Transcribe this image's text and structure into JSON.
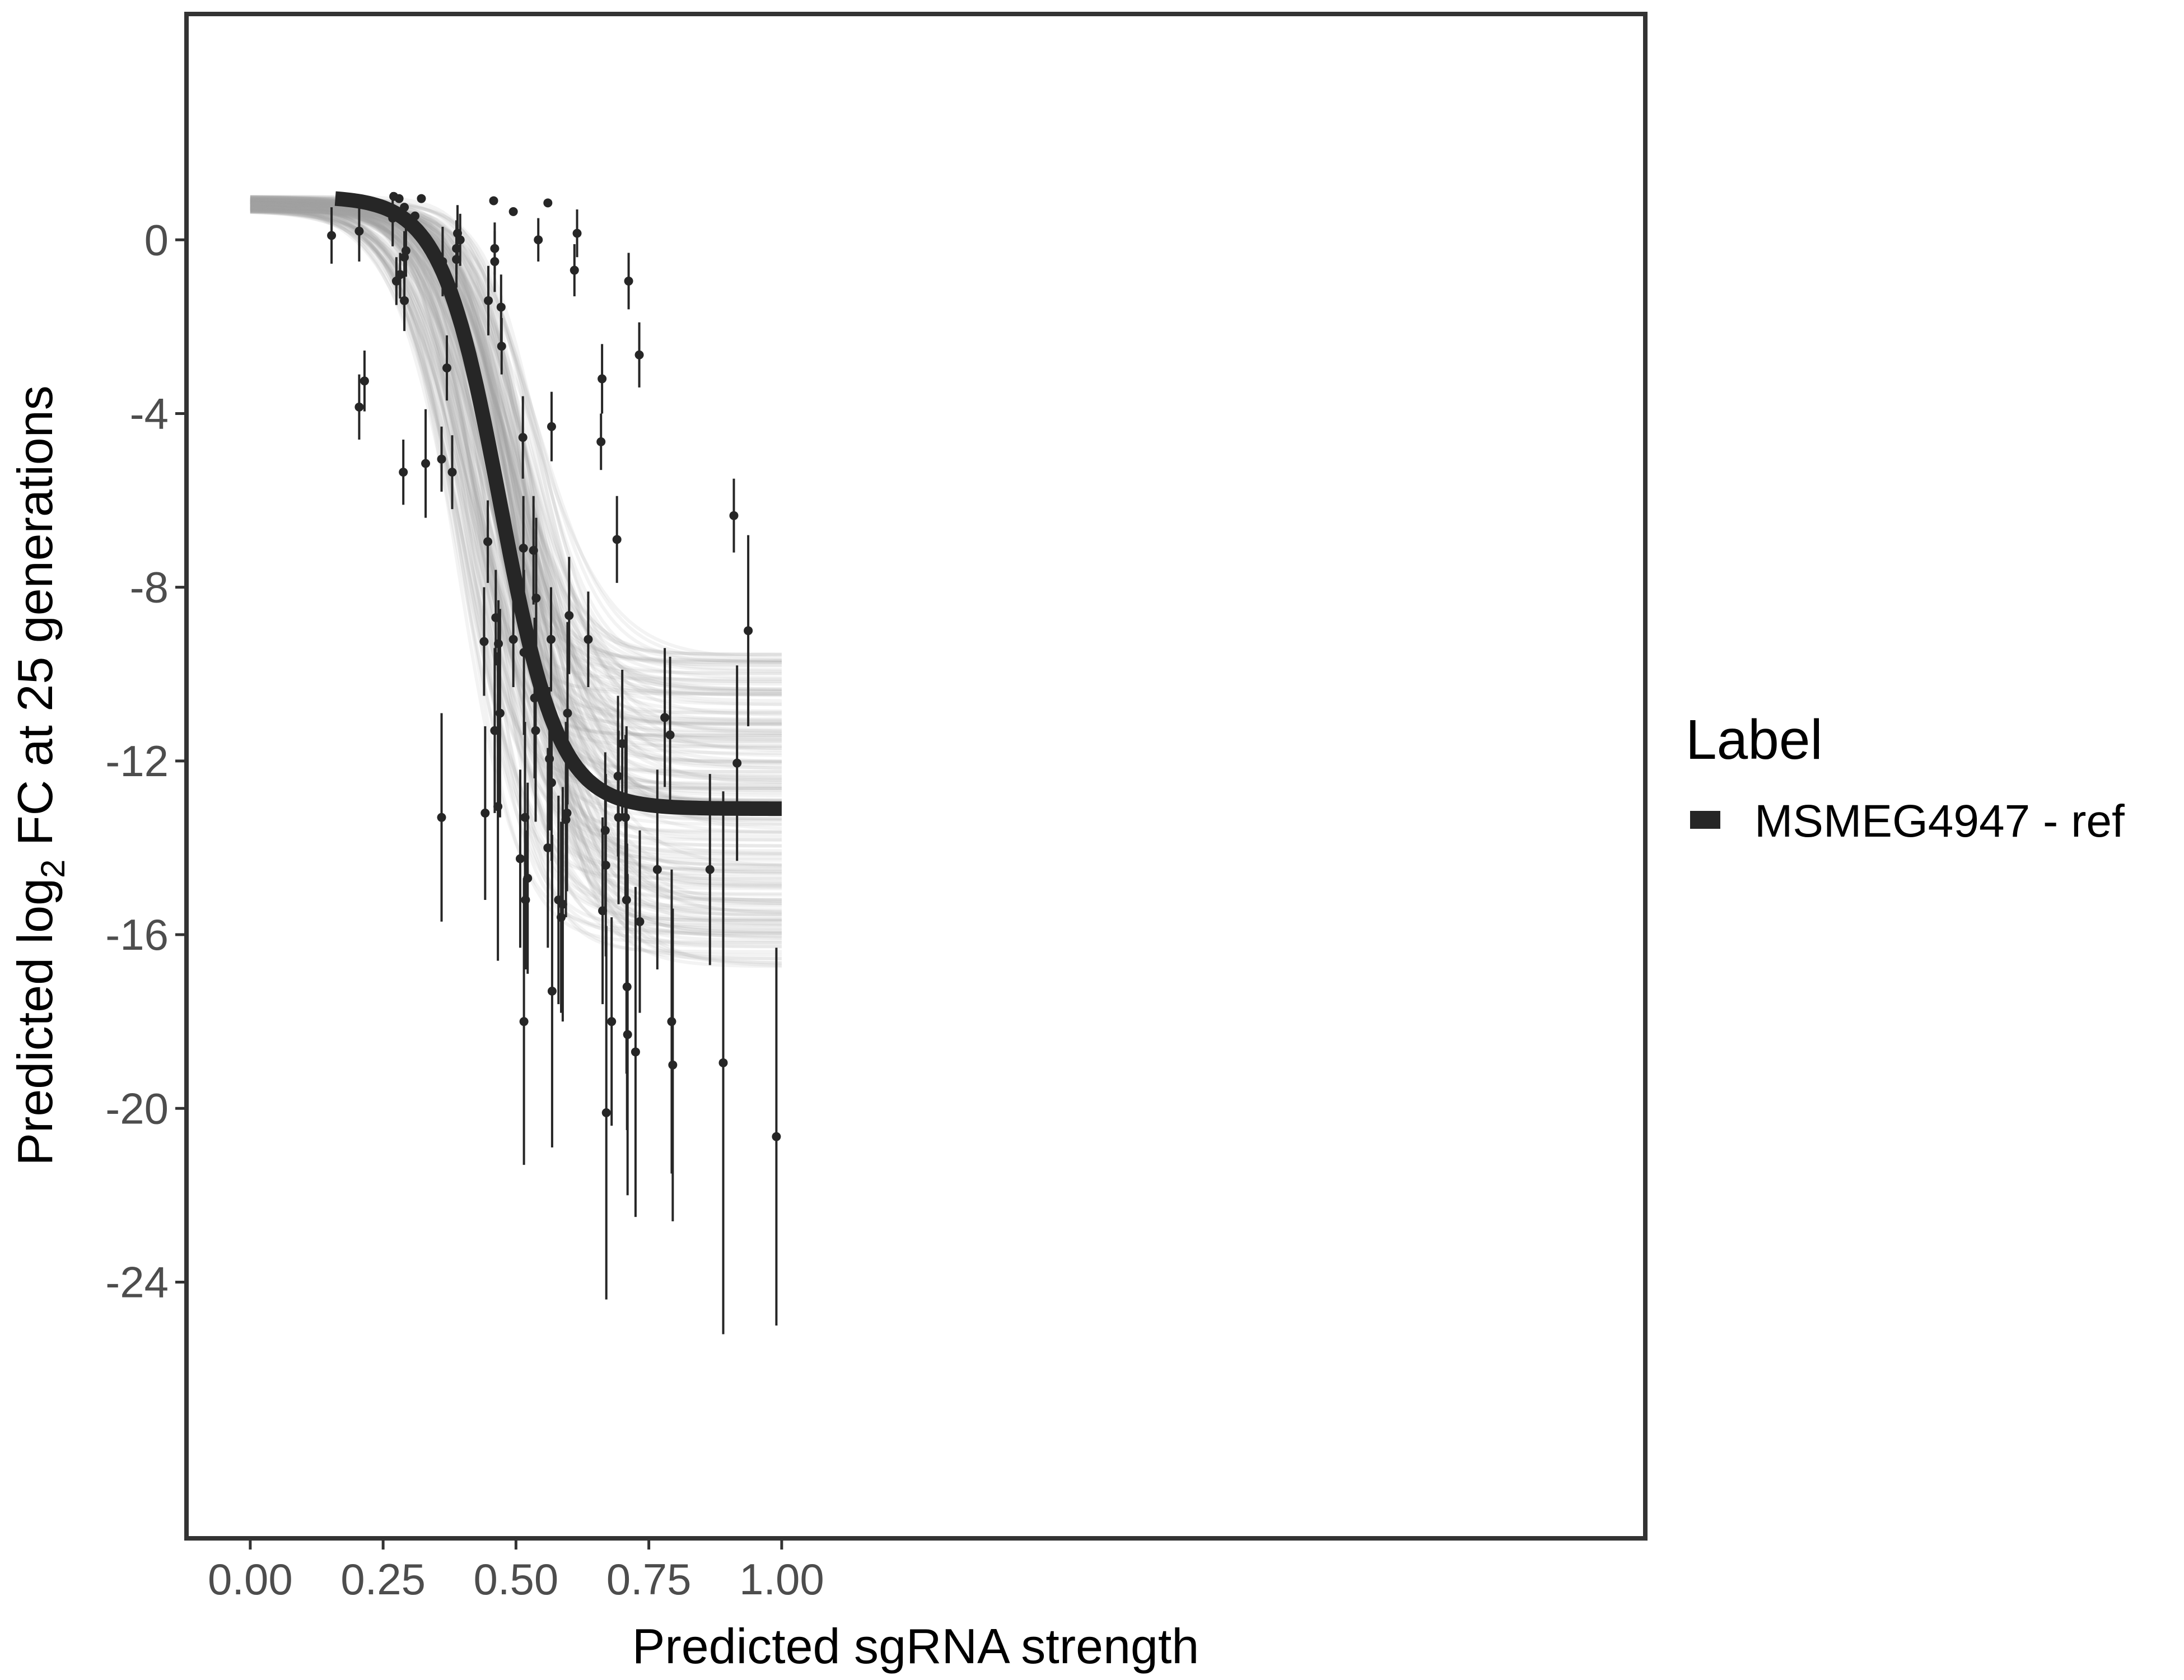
{
  "chart_data": {
    "type": "scatter",
    "xlabel": "Predicted sgRNA strength",
    "ylabel_parts": [
      "Predicted  log",
      "2",
      " FC at 25 generations"
    ],
    "xlim": [
      -0.12,
      2.625
    ],
    "ylim": [
      -29.9,
      5.2
    ],
    "x_ticks": [
      0,
      0.25,
      0.5,
      0.75,
      1
    ],
    "x_tick_labels": [
      "0.00",
      "0.25",
      "0.50",
      "0.75",
      "1.00"
    ],
    "y_ticks": [
      0,
      -4,
      -8,
      -12,
      -16,
      -20,
      -24
    ],
    "y_tick_labels": [
      "0",
      "-4",
      "-8",
      "-12",
      "-16",
      "-20",
      "-24"
    ],
    "legend": {
      "title": "Label",
      "entries": [
        "MSMEG4947 - ref"
      ],
      "position": "right"
    },
    "colors": {
      "fit": "#262626",
      "band": "#a6a6a6",
      "points": "#262626",
      "frame": "#333333"
    },
    "fit_curve": {
      "x_start": 0.16,
      "x_end": 1.0,
      "upper": 1.0,
      "lower": -13.1,
      "midpoint": 0.47,
      "scale": 0.055
    },
    "posterior_band": {
      "x_start": 0.0,
      "x_end": 1.0,
      "upper_asymptote_range": [
        0.65,
        1.0
      ],
      "lower_asymptote_range": [
        -9.5,
        -16.8
      ],
      "midpoint_range": [
        0.39,
        0.55
      ],
      "scale_range": [
        0.045,
        0.075
      ],
      "n_draws": 200
    },
    "points": [
      {
        "x": 0.153,
        "y": 0.1,
        "lo": -0.55,
        "hi": 0.75
      },
      {
        "x": 0.205,
        "y": 0.2,
        "lo": -0.5,
        "hi": 0.8
      },
      {
        "x": 0.205,
        "y": -3.85,
        "lo": -4.6,
        "hi": -3.1
      },
      {
        "x": 0.215,
        "y": -3.25,
        "lo": -3.95,
        "hi": -2.55
      },
      {
        "x": 0.268,
        "y": 0.5,
        "lo": -0.15,
        "hi": 1.1
      },
      {
        "x": 0.275,
        "y": -0.95,
        "lo": -1.5,
        "hi": -0.4
      },
      {
        "x": 0.282,
        "y": -0.8,
        "lo": -1.35,
        "hi": -0.3
      },
      {
        "x": 0.288,
        "y": -5.35,
        "lo": -6.1,
        "hi": -4.6
      },
      {
        "x": 0.29,
        "y": -1.4,
        "lo": -2.1,
        "hi": -0.75
      },
      {
        "x": 0.29,
        "y": -0.4,
        "lo": -1.0,
        "hi": 0.2
      },
      {
        "x": 0.293,
        "y": -0.25,
        "lo": -0.85,
        "hi": 0.35
      },
      {
        "x": 0.33,
        "y": -5.15,
        "lo": -6.4,
        "hi": -3.9
      },
      {
        "x": 0.36,
        "y": -5.05,
        "lo": -5.8,
        "hi": -4.3
      },
      {
        "x": 0.36,
        "y": -13.3,
        "lo": -15.7,
        "hi": -10.9
      },
      {
        "x": 0.362,
        "y": -0.5,
        "lo": -1.3,
        "hi": 0.3
      },
      {
        "x": 0.37,
        "y": -2.95,
        "lo": -3.7,
        "hi": -2.2
      },
      {
        "x": 0.38,
        "y": -5.35,
        "lo": -6.2,
        "hi": -4.5
      },
      {
        "x": 0.388,
        "y": -0.45,
        "lo": -1.1,
        "hi": 0.2
      },
      {
        "x": 0.388,
        "y": -0.2,
        "lo": -0.8,
        "hi": 0.45
      },
      {
        "x": 0.39,
        "y": 0.15,
        "lo": -0.45,
        "hi": 0.8
      },
      {
        "x": 0.395,
        "y": 0.0,
        "lo": -0.6,
        "hi": 0.6
      },
      {
        "x": 0.44,
        "y": -9.25,
        "lo": -10.5,
        "hi": -8.0
      },
      {
        "x": 0.442,
        "y": -13.2,
        "lo": -15.2,
        "hi": -11.2
      },
      {
        "x": 0.447,
        "y": -6.95,
        "lo": -7.9,
        "hi": -6.0
      },
      {
        "x": 0.448,
        "y": -1.4,
        "lo": -2.2,
        "hi": -0.6
      },
      {
        "x": 0.46,
        "y": -0.2,
        "lo": -0.8,
        "hi": 0.4
      },
      {
        "x": 0.46,
        "y": -0.5,
        "lo": -1.2,
        "hi": 0.2
      },
      {
        "x": 0.46,
        "y": -11.3,
        "lo": -13.2,
        "hi": -9.4
      },
      {
        "x": 0.462,
        "y": -8.7,
        "lo": -9.8,
        "hi": -7.6
      },
      {
        "x": 0.466,
        "y": -13.05,
        "lo": -16.6,
        "hi": -9.5
      },
      {
        "x": 0.467,
        "y": -9.3,
        "lo": -10.3,
        "hi": -8.3
      },
      {
        "x": 0.47,
        "y": -10.9,
        "lo": -13.3,
        "hi": -8.5
      },
      {
        "x": 0.472,
        "y": -1.55,
        "lo": -2.4,
        "hi": -0.8
      },
      {
        "x": 0.473,
        "y": -2.45,
        "lo": -3.1,
        "hi": -1.8
      },
      {
        "x": 0.495,
        "y": -9.2,
        "lo": -10.3,
        "hi": -8.1
      },
      {
        "x": 0.508,
        "y": -14.25,
        "lo": -16.3,
        "hi": -12.2
      },
      {
        "x": 0.513,
        "y": -4.55,
        "lo": -5.5,
        "hi": -3.6
      },
      {
        "x": 0.514,
        "y": -7.1,
        "lo": -8.3,
        "hi": -5.9
      },
      {
        "x": 0.515,
        "y": -9.5,
        "lo": -11.4,
        "hi": -7.6
      },
      {
        "x": 0.515,
        "y": -18.0,
        "lo": -21.3,
        "hi": -14.7
      },
      {
        "x": 0.517,
        "y": -13.3,
        "lo": -15.5,
        "hi": -11.1
      },
      {
        "x": 0.518,
        "y": -15.2,
        "lo": -16.8,
        "hi": -13.6
      },
      {
        "x": 0.522,
        "y": -14.7,
        "lo": -16.9,
        "hi": -12.5
      },
      {
        "x": 0.533,
        "y": -7.15,
        "lo": -8.4,
        "hi": -5.9
      },
      {
        "x": 0.535,
        "y": -10.55,
        "lo": -12.4,
        "hi": -8.7
      },
      {
        "x": 0.537,
        "y": -11.3,
        "lo": -13.4,
        "hi": -9.2
      },
      {
        "x": 0.538,
        "y": -8.25,
        "lo": -10.1,
        "hi": -6.4
      },
      {
        "x": 0.542,
        "y": 0.0,
        "lo": -0.5,
        "hi": 0.5
      },
      {
        "x": 0.56,
        "y": -14.0,
        "lo": -16.3,
        "hi": -11.7
      },
      {
        "x": 0.563,
        "y": -11.95,
        "lo": -13.6,
        "hi": -10.3
      },
      {
        "x": 0.566,
        "y": -9.2,
        "lo": -10.4,
        "hi": -8.0
      },
      {
        "x": 0.567,
        "y": -4.3,
        "lo": -5.1,
        "hi": -3.5
      },
      {
        "x": 0.567,
        "y": -12.5,
        "lo": -14.3,
        "hi": -10.7
      },
      {
        "x": 0.568,
        "y": -17.3,
        "lo": -20.9,
        "hi": -13.7
      },
      {
        "x": 0.58,
        "y": -15.2,
        "lo": -17.6,
        "hi": -12.8
      },
      {
        "x": 0.585,
        "y": -15.6,
        "lo": -17.8,
        "hi": -13.4
      },
      {
        "x": 0.588,
        "y": -15.3,
        "lo": -18.0,
        "hi": -12.6
      },
      {
        "x": 0.594,
        "y": -13.35,
        "lo": -15.6,
        "hi": -11.1
      },
      {
        "x": 0.596,
        "y": -13.2,
        "lo": -15.0,
        "hi": -11.4
      },
      {
        "x": 0.597,
        "y": -10.9,
        "lo": -13.0,
        "hi": -8.8
      },
      {
        "x": 0.6,
        "y": -8.65,
        "lo": -10.0,
        "hi": -7.3
      },
      {
        "x": 0.61,
        "y": -0.7,
        "lo": -1.3,
        "hi": -0.1
      },
      {
        "x": 0.615,
        "y": 0.15,
        "lo": -0.4,
        "hi": 0.7
      },
      {
        "x": 0.636,
        "y": -9.2,
        "lo": -10.3,
        "hi": -8.1
      },
      {
        "x": 0.66,
        "y": -4.65,
        "lo": -5.3,
        "hi": -4.0
      },
      {
        "x": 0.662,
        "y": -3.2,
        "lo": -4.0,
        "hi": -2.4
      },
      {
        "x": 0.663,
        "y": -15.45,
        "lo": -17.6,
        "hi": -13.3
      },
      {
        "x": 0.668,
        "y": -13.6,
        "lo": -15.4,
        "hi": -11.8
      },
      {
        "x": 0.669,
        "y": -14.4,
        "lo": -16.5,
        "hi": -12.3
      },
      {
        "x": 0.67,
        "y": -20.1,
        "lo": -24.4,
        "hi": -15.8
      },
      {
        "x": 0.68,
        "y": -18.0,
        "lo": -20.4,
        "hi": -15.6
      },
      {
        "x": 0.69,
        "y": -6.9,
        "lo": -7.9,
        "hi": -5.9
      },
      {
        "x": 0.692,
        "y": -12.35,
        "lo": -14.2,
        "hi": -10.5
      },
      {
        "x": 0.693,
        "y": -13.3,
        "lo": -15.3,
        "hi": -11.3
      },
      {
        "x": 0.7,
        "y": -11.6,
        "lo": -13.3,
        "hi": -9.9
      },
      {
        "x": 0.706,
        "y": -13.3,
        "lo": -15.2,
        "hi": -11.4
      },
      {
        "x": 0.708,
        "y": -15.2,
        "lo": -19.2,
        "hi": -11.2
      },
      {
        "x": 0.709,
        "y": -17.2,
        "lo": -20.5,
        "hi": -13.9
      },
      {
        "x": 0.71,
        "y": -18.3,
        "lo": -22.0,
        "hi": -14.6
      },
      {
        "x": 0.712,
        "y": -0.95,
        "lo": -1.6,
        "hi": -0.3
      },
      {
        "x": 0.725,
        "y": -18.7,
        "lo": -22.5,
        "hi": -14.9
      },
      {
        "x": 0.732,
        "y": -2.65,
        "lo": -3.4,
        "hi": -1.9
      },
      {
        "x": 0.733,
        "y": -15.7,
        "lo": -17.8,
        "hi": -13.6
      },
      {
        "x": 0.766,
        "y": -14.5,
        "lo": -16.8,
        "hi": -12.2
      },
      {
        "x": 0.78,
        "y": -11.0,
        "lo": -12.6,
        "hi": -9.4
      },
      {
        "x": 0.79,
        "y": -11.4,
        "lo": -13.2,
        "hi": -9.6
      },
      {
        "x": 0.793,
        "y": -18.0,
        "lo": -21.5,
        "hi": -14.5
      },
      {
        "x": 0.795,
        "y": -19.0,
        "lo": -22.6,
        "hi": -15.4
      },
      {
        "x": 0.865,
        "y": -14.5,
        "lo": -16.7,
        "hi": -12.3
      },
      {
        "x": 0.89,
        "y": -18.95,
        "lo": -25.2,
        "hi": -12.7
      },
      {
        "x": 0.91,
        "y": -6.35,
        "lo": -7.2,
        "hi": -5.5
      },
      {
        "x": 0.916,
        "y": -12.05,
        "lo": -14.3,
        "hi": -9.8
      },
      {
        "x": 0.937,
        "y": -9.0,
        "lo": -11.2,
        "hi": -6.8
      },
      {
        "x": 0.99,
        "y": -20.65,
        "lo": -25.0,
        "hi": -16.3
      },
      {
        "x": 0.27,
        "y": 1.0
      },
      {
        "x": 0.28,
        "y": 0.95
      },
      {
        "x": 0.29,
        "y": 0.75
      },
      {
        "x": 0.31,
        "y": 0.55
      },
      {
        "x": 0.322,
        "y": 0.95
      },
      {
        "x": 0.458,
        "y": 0.9
      },
      {
        "x": 0.495,
        "y": 0.65
      },
      {
        "x": 0.56,
        "y": 0.85
      }
    ]
  }
}
